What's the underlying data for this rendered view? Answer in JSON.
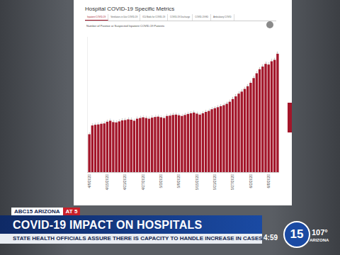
{
  "chart_data": {
    "type": "bar",
    "title": "Hospital COVID-19 Specific Metrics",
    "subtitle": "Number of Positive or Suspected Inpatient COVID-19 Patients",
    "categories": [
      "4/9/2020",
      null,
      null,
      null,
      null,
      null,
      "4/15/2020",
      null,
      null,
      null,
      null,
      null,
      "4/21/2020",
      null,
      null,
      null,
      null,
      null,
      "4/27/2020",
      null,
      null,
      null,
      null,
      null,
      "5/3/2020",
      null,
      null,
      null,
      null,
      null,
      "5/9/2020",
      null,
      null,
      null,
      null,
      null,
      "5/15/2020",
      null,
      null,
      null,
      null,
      null,
      "5/21/2020",
      null,
      null,
      null,
      null,
      null,
      "5/27/2020",
      null,
      null,
      null,
      null,
      null,
      "6/2/2020",
      null,
      null,
      null,
      null,
      null,
      "6/8/2020",
      null,
      null,
      null
    ],
    "values": [
      560,
      690,
      700,
      705,
      715,
      720,
      745,
      760,
      740,
      735,
      750,
      765,
      770,
      780,
      775,
      760,
      790,
      800,
      810,
      800,
      790,
      805,
      815,
      820,
      810,
      800,
      830,
      835,
      845,
      850,
      840,
      830,
      845,
      860,
      870,
      880,
      865,
      850,
      870,
      890,
      905,
      930,
      945,
      960,
      975,
      990,
      1010,
      1040,
      1080,
      1120,
      1160,
      1190,
      1230,
      1270,
      1320,
      1390,
      1460,
      1520,
      1560,
      1600,
      1590,
      1640,
      1660,
      1750
    ],
    "color": "#a3162a",
    "ylim": [
      0,
      2000
    ],
    "grid": false,
    "data_labels": true,
    "tick_labels": "x"
  },
  "screen": {
    "tabs": [
      "Inpatient COVID-19",
      "Ventilators in Use COVID-19",
      "ICU Beds for COVID-19",
      "COVID-19 Discharge",
      "COVID-19 ED",
      "Ambulatory COVID"
    ],
    "banner_tag": "ABC15 ARIZONA",
    "banner_tag2": "AT 5",
    "headline": "COVID-19 IMPACT ON HOSPITALS",
    "subhead": "STATE HEALTH OFFICIALS ASSURE THERE IS CAPACITY TO HANDLE INCREASE IN CASES",
    "clock": "4:59",
    "logo": "15",
    "temperature": "107°",
    "station": "ARIZONA"
  }
}
